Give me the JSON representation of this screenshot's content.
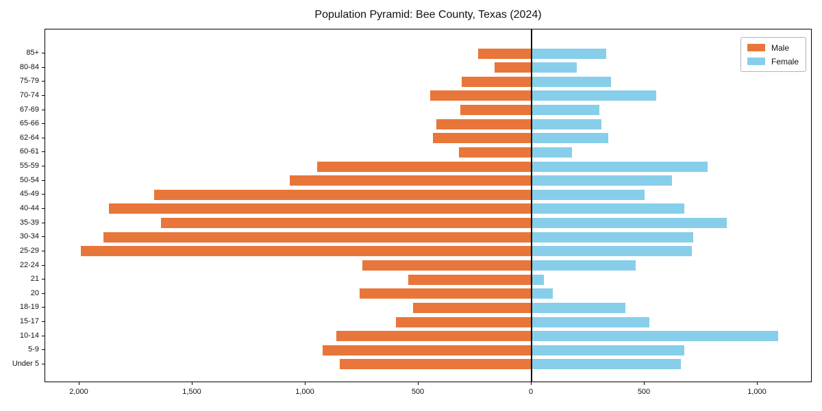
{
  "title": "Population Pyramid: Bee County, Texas (2024)",
  "legend": {
    "male_label": "Male",
    "female_label": "Female"
  },
  "colors": {
    "male": "#e8763a",
    "female": "#87ceeb",
    "axis": "#000000",
    "background": "#ffffff"
  },
  "chart_data": {
    "type": "bar",
    "subtype": "population-pyramid-horizontal",
    "title": "Population Pyramid: Bee County, Texas (2024)",
    "categories": [
      "85+",
      "80-84",
      "75-79",
      "70-74",
      "67-69",
      "65-66",
      "62-64",
      "60-61",
      "55-59",
      "50-54",
      "45-49",
      "40-44",
      "35-39",
      "30-34",
      "25-29",
      "22-24",
      "21",
      "20",
      "18-19",
      "15-17",
      "10-14",
      "5-9",
      "Under 5"
    ],
    "series": [
      {
        "name": "Male",
        "side": "left",
        "color": "#e8763a",
        "values": [
          235,
          165,
          310,
          450,
          315,
          420,
          435,
          320,
          950,
          1070,
          1670,
          1870,
          1640,
          1895,
          1995,
          750,
          545,
          760,
          525,
          600,
          865,
          925,
          850
        ]
      },
      {
        "name": "Female",
        "side": "right",
        "color": "#87ceeb",
        "values": [
          330,
          200,
          350,
          550,
          300,
          310,
          340,
          180,
          780,
          620,
          500,
          675,
          865,
          715,
          710,
          460,
          55,
          95,
          415,
          520,
          1090,
          675,
          660
        ]
      }
    ],
    "x_axis": {
      "tick_values": [
        -2000,
        -1500,
        -1000,
        -500,
        0,
        500,
        1000
      ],
      "tick_labels": [
        "2,000",
        "1,500",
        "1,000",
        "500",
        "0",
        "500",
        "1,000"
      ],
      "xlim": [
        -2152,
        1242
      ]
    },
    "legend_position": "upper-right",
    "grid": false
  }
}
